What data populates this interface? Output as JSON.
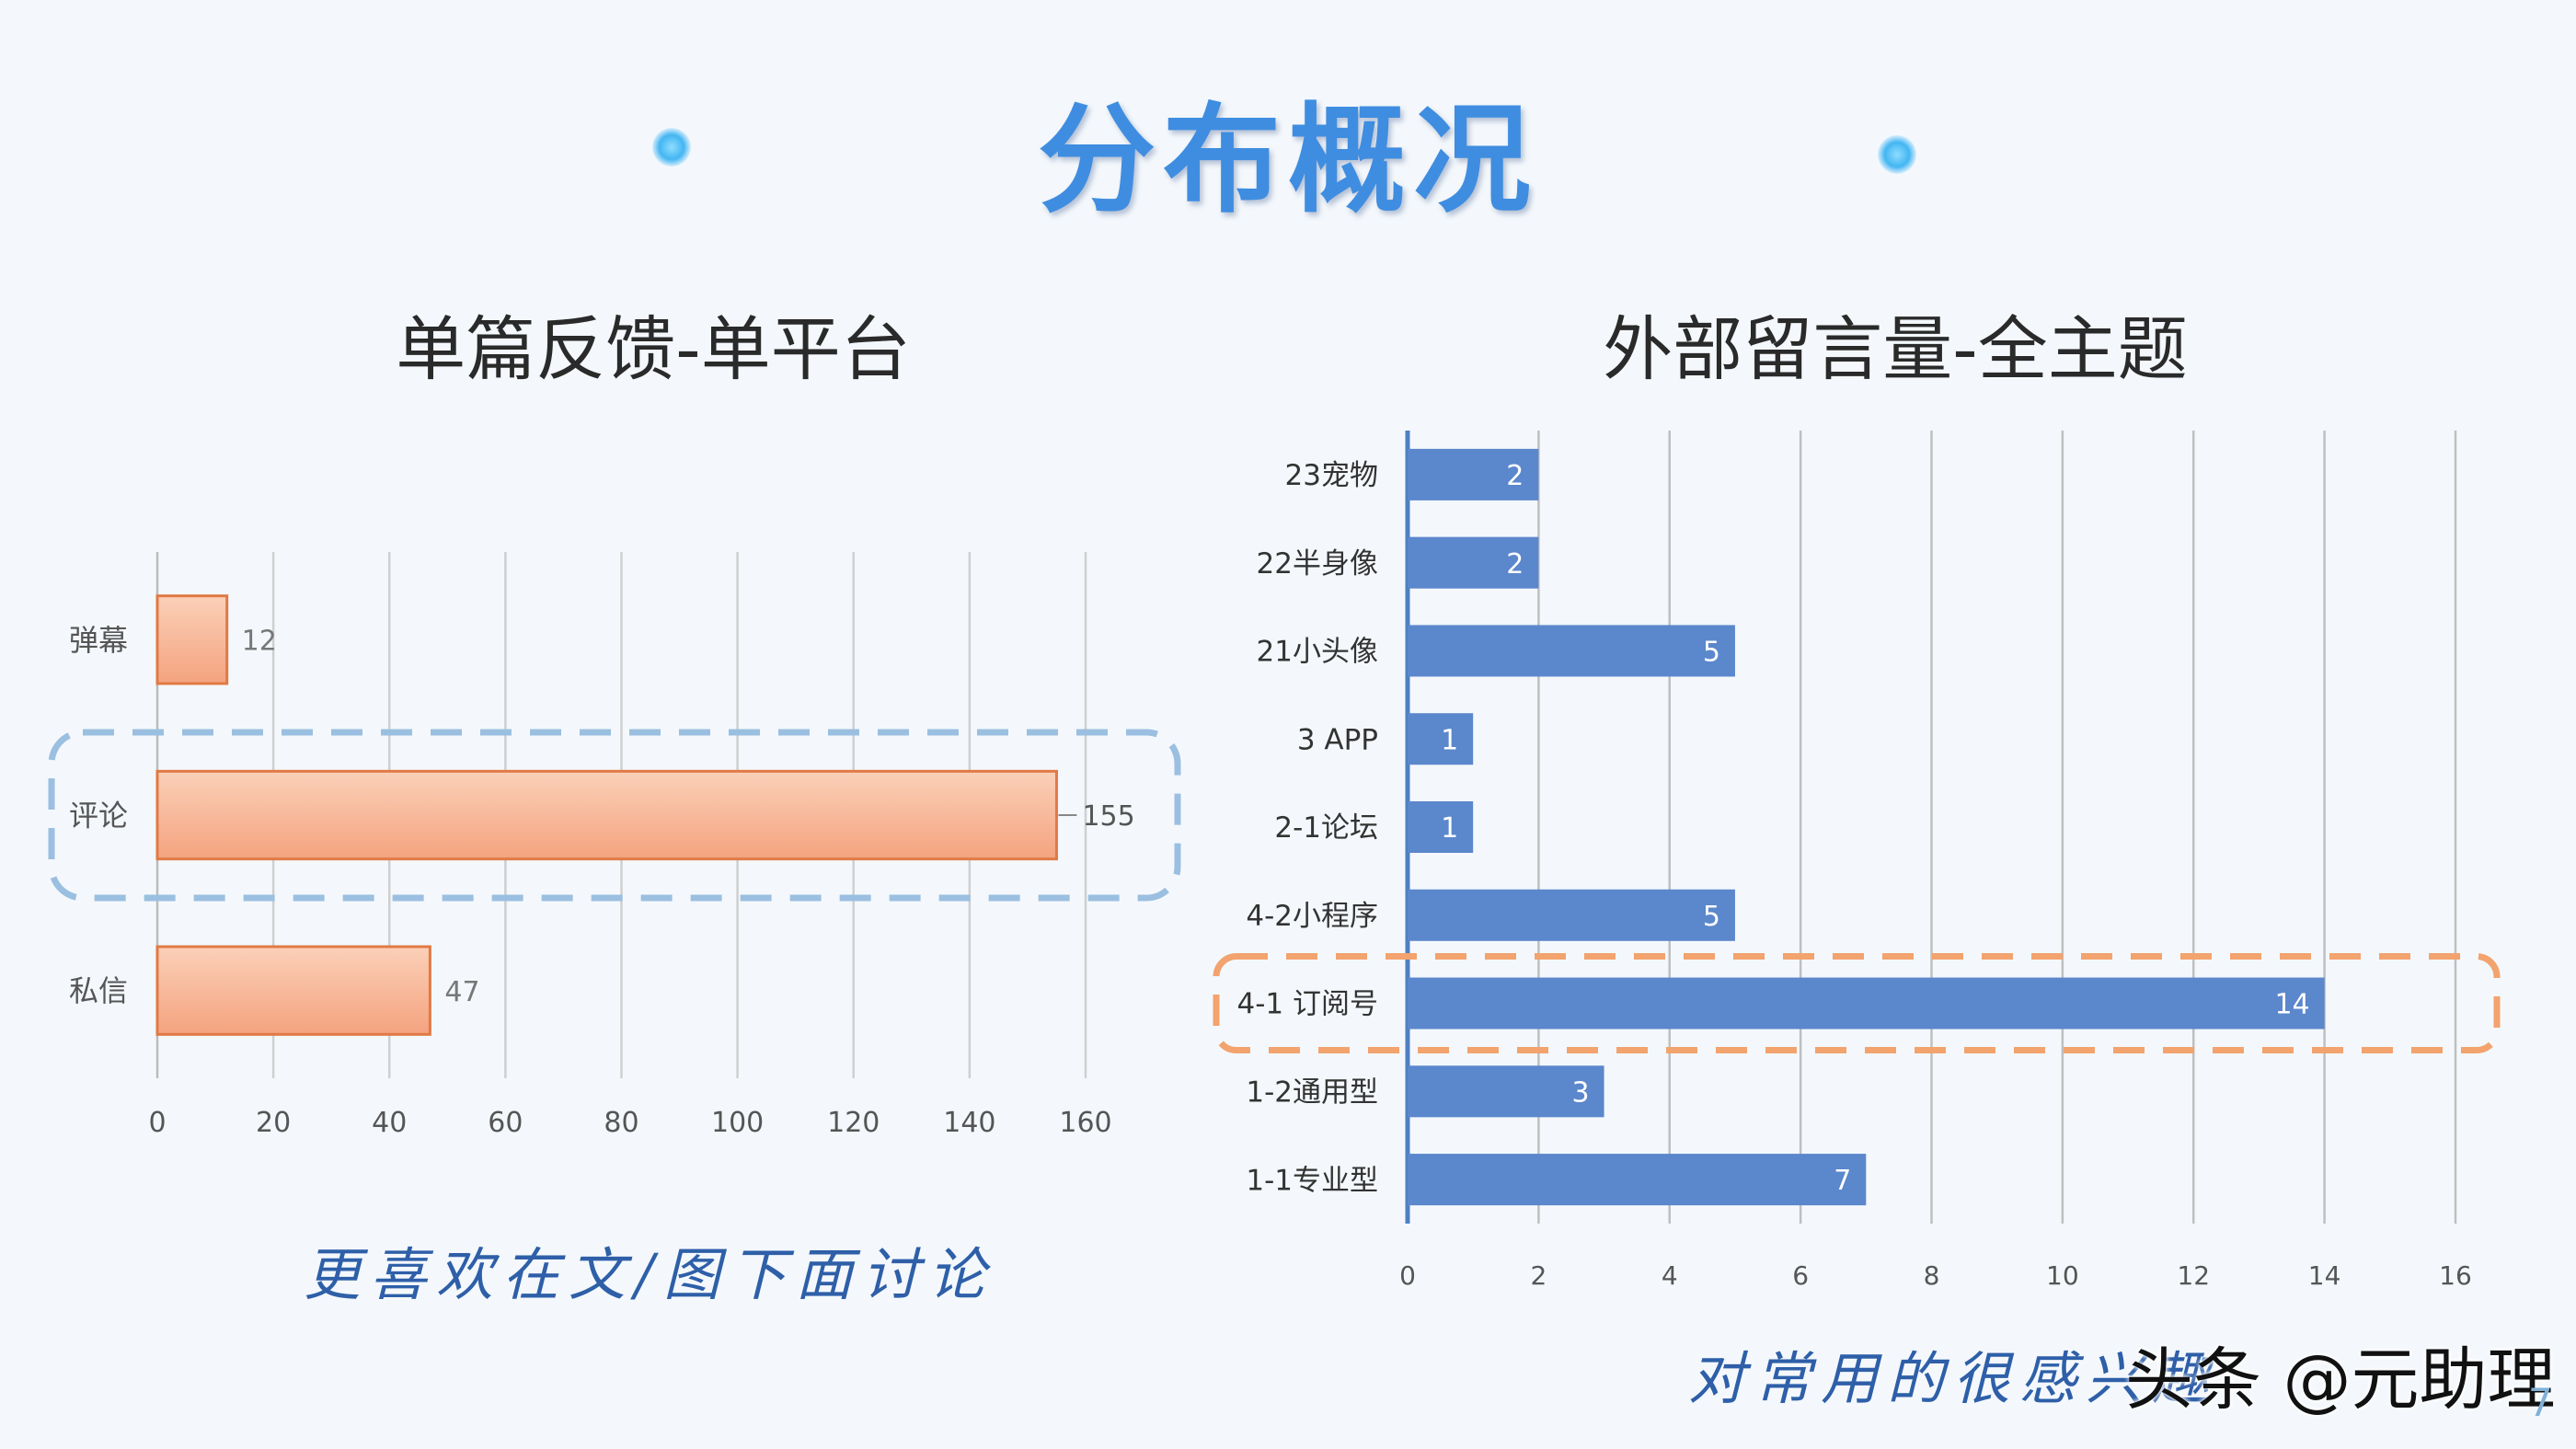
{
  "page": {
    "title": "分布概况",
    "page_number": "7",
    "watermark": "头条 @元助理"
  },
  "chart_data": [
    {
      "type": "bar",
      "orientation": "horizontal",
      "title": "单篇反馈-单平台",
      "categories": [
        "弹幕",
        "评论",
        "私信"
      ],
      "values": [
        12,
        155,
        47
      ],
      "data_labels": [
        "12",
        "155",
        "47"
      ],
      "xlim": [
        0,
        160
      ],
      "xticks": [
        "0",
        "20",
        "40",
        "60",
        "80",
        "100",
        "120",
        "140",
        "160"
      ],
      "grid": "vertical",
      "highlight": "评论",
      "bar_color": "#f4a37f",
      "highlight_color": "#9bbfe0",
      "caption": "更喜欢在文/图下面讨论"
    },
    {
      "type": "bar",
      "orientation": "horizontal",
      "title": "外部留言量-全主题",
      "categories": [
        "23宠物",
        "22半身像",
        "21小头像",
        "3 APP",
        "2-1论坛",
        "4-2小程序",
        "4-1 订阅号",
        "1-2通用型",
        "1-1专业型"
      ],
      "values": [
        2,
        2,
        5,
        1,
        1,
        5,
        14,
        3,
        7
      ],
      "data_labels": [
        "2",
        "2",
        "5",
        "1",
        "1",
        "5",
        "14",
        "3",
        "7"
      ],
      "xlim": [
        0,
        16
      ],
      "xticks": [
        "0",
        "2",
        "4",
        "6",
        "8",
        "10",
        "12",
        "14",
        "16"
      ],
      "grid": "vertical",
      "highlight": "4-1 订阅号",
      "bar_color": "#5b87cc",
      "highlight_color": "#f2a36e",
      "caption": "对常用的很感兴趣"
    }
  ]
}
